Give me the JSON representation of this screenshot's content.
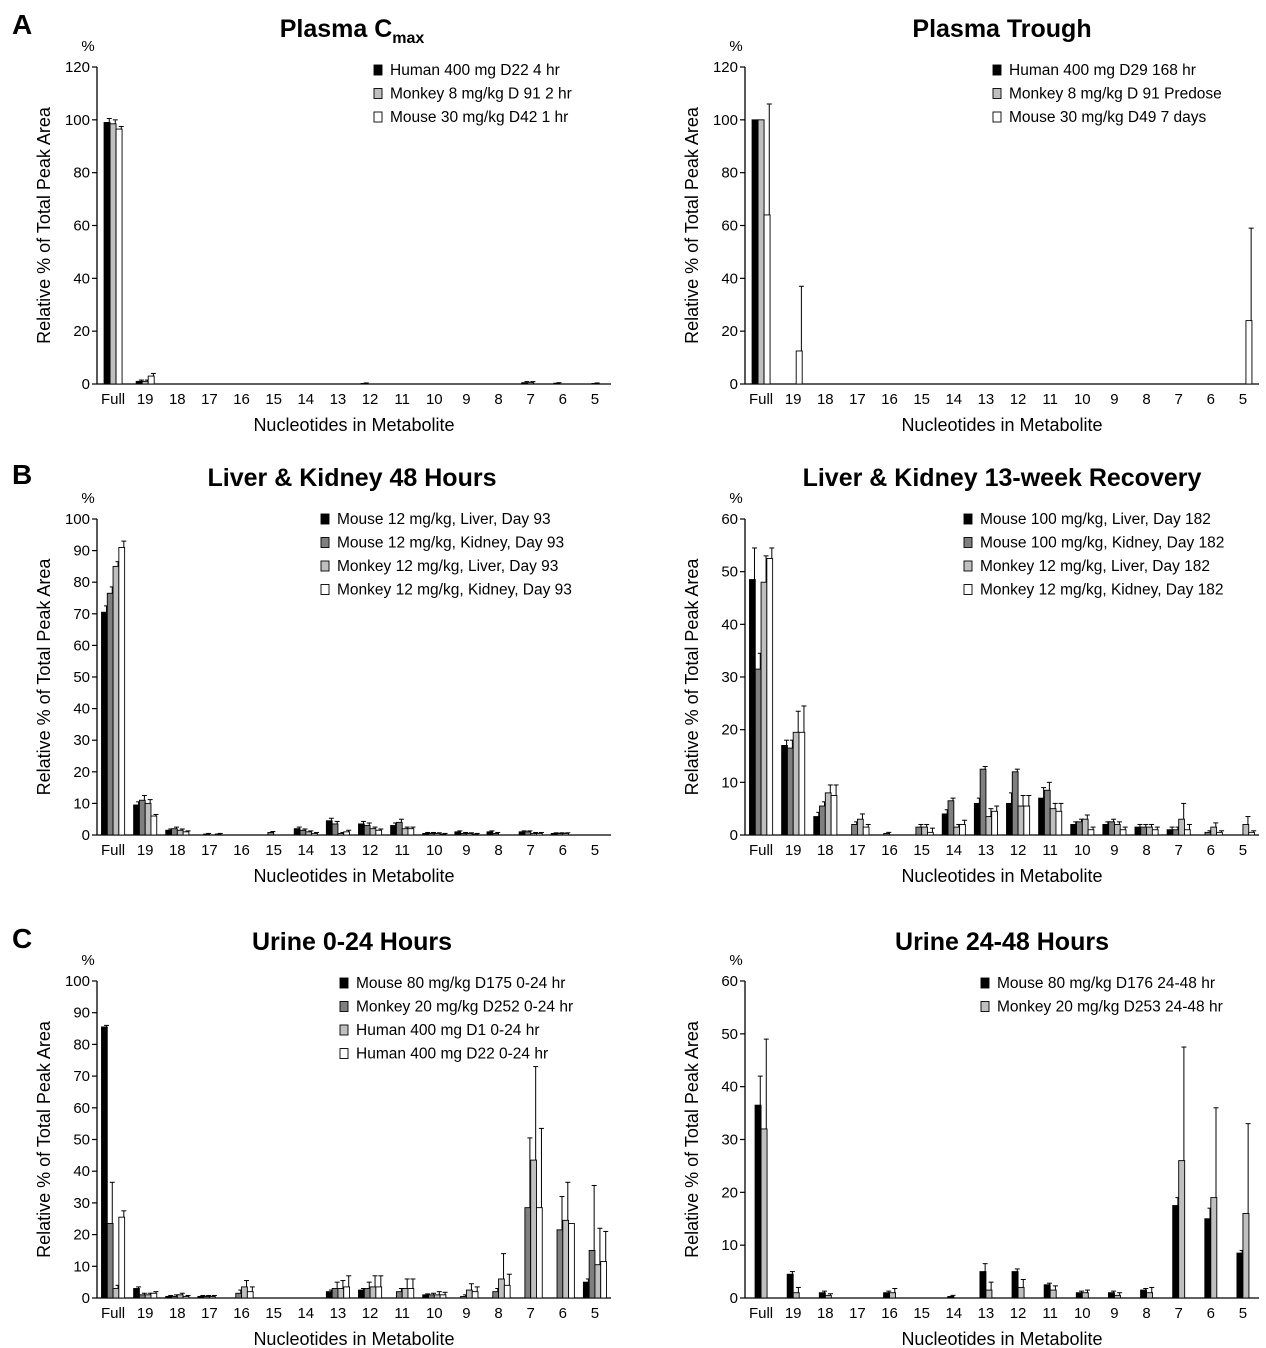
{
  "panel_letters": [
    "A",
    "B",
    "C"
  ],
  "colors": {
    "black": "#000000",
    "dark-gray": "#7f7f7f",
    "light-gray": "#bfbfbf",
    "white": "#ffffff"
  },
  "chart_data": [
    {
      "panel": "A",
      "type": "bar",
      "title": "Plasma C",
      "title_sub": "max",
      "xlabel": "Nucleotides in Metabolite",
      "ylabel": "Relative % of Total Peak Area",
      "yunit": "%",
      "ylim": [
        0,
        120
      ],
      "yticks": [
        0,
        20,
        40,
        60,
        80,
        100,
        120
      ],
      "grid": false,
      "legend": "top-right",
      "categories": [
        "Full",
        "19",
        "18",
        "17",
        "16",
        "15",
        "14",
        "13",
        "12",
        "11",
        "10",
        "9",
        "8",
        "7",
        "6",
        "5"
      ],
      "series": [
        {
          "name": "Human 400 mg D22 4 hr",
          "color": "#000000",
          "values": [
            99,
            1,
            0,
            0,
            0,
            0,
            0,
            0,
            0.2,
            0,
            0,
            0,
            0,
            0.5,
            0.3,
            0
          ],
          "errors": [
            1.5,
            0.5,
            0,
            0,
            0,
            0,
            0,
            0,
            0.2,
            0,
            0,
            0,
            0,
            0.4,
            0.2,
            0
          ]
        },
        {
          "name": "Monkey 8 mg/kg D 91 2 hr",
          "color": "#bfbfbf",
          "values": [
            98.5,
            1,
            0,
            0,
            0,
            0,
            0,
            0,
            0,
            0,
            0,
            0,
            0,
            0.5,
            0,
            0.2
          ],
          "errors": [
            1.5,
            0.5,
            0,
            0,
            0,
            0,
            0,
            0,
            0,
            0,
            0,
            0,
            0,
            0.4,
            0,
            0.2
          ]
        },
        {
          "name": "Mouse 30 mg/kg D42 1 hr",
          "color": "#ffffff",
          "values": [
            96.5,
            3,
            0,
            0,
            0,
            0,
            0,
            0,
            0,
            0,
            0,
            0,
            0,
            0,
            0,
            0
          ],
          "errors": [
            1,
            1,
            0,
            0,
            0,
            0,
            0,
            0,
            0,
            0,
            0,
            0,
            0,
            0,
            0,
            0
          ]
        }
      ]
    },
    {
      "panel": "A",
      "type": "bar",
      "title": "Plasma Trough",
      "xlabel": "Nucleotides in Metabolite",
      "ylabel": "Relative % of Total Peak Area",
      "yunit": "%",
      "ylim": [
        0,
        120
      ],
      "yticks": [
        0,
        20,
        40,
        60,
        80,
        100,
        120
      ],
      "grid": false,
      "legend": "top-right",
      "categories": [
        "Full",
        "19",
        "18",
        "17",
        "16",
        "15",
        "14",
        "13",
        "12",
        "11",
        "10",
        "9",
        "8",
        "7",
        "6",
        "5"
      ],
      "series": [
        {
          "name": "Human 400 mg D29 168 hr",
          "color": "#000000",
          "values": [
            100,
            0,
            0,
            0,
            0,
            0,
            0,
            0,
            0,
            0,
            0,
            0,
            0,
            0,
            0,
            0
          ],
          "errors": [
            0,
            0,
            0,
            0,
            0,
            0,
            0,
            0,
            0,
            0,
            0,
            0,
            0,
            0,
            0,
            0
          ]
        },
        {
          "name": "Monkey 8 mg/kg D 91 Predose",
          "color": "#bfbfbf",
          "values": [
            100,
            0,
            0,
            0,
            0,
            0,
            0,
            0,
            0,
            0,
            0,
            0,
            0,
            0,
            0,
            0
          ],
          "errors": [
            0,
            0,
            0,
            0,
            0,
            0,
            0,
            0,
            0,
            0,
            0,
            0,
            0,
            0,
            0,
            0
          ]
        },
        {
          "name": "Mouse 30 mg/kg D49 7 days",
          "color": "#ffffff",
          "values": [
            64,
            12.5,
            0,
            0,
            0,
            0,
            0,
            0,
            0,
            0,
            0,
            0,
            0,
            0,
            0,
            24
          ],
          "errors": [
            42,
            24.5,
            0,
            0,
            0,
            0,
            0,
            0,
            0,
            0,
            0,
            0,
            0,
            0,
            0,
            35
          ]
        }
      ]
    },
    {
      "panel": "B",
      "type": "bar",
      "title": "Liver & Kidney 48 Hours",
      "xlabel": "Nucleotides in Metabolite",
      "ylabel": "Relative % of Total Peak Area",
      "yunit": "%",
      "ylim": [
        0,
        100
      ],
      "yticks": [
        0,
        10,
        20,
        30,
        40,
        50,
        60,
        70,
        80,
        90,
        100
      ],
      "grid": false,
      "legend": "top-right",
      "categories": [
        "Full",
        "19",
        "18",
        "17",
        "16",
        "15",
        "14",
        "13",
        "12",
        "11",
        "10",
        "9",
        "8",
        "7",
        "6",
        "5"
      ],
      "series": [
        {
          "name": "Mouse 12 mg/kg, Liver, Day 93",
          "color": "#000000",
          "values": [
            70.5,
            9.5,
            1.5,
            0,
            0,
            0,
            2,
            4.5,
            3.5,
            3,
            0.5,
            1,
            1,
            1,
            0.5,
            0
          ],
          "errors": [
            2,
            1,
            0.4,
            0,
            0,
            0,
            0.5,
            0.8,
            0.8,
            0.8,
            0.3,
            0.3,
            0.3,
            0.3,
            0.2,
            0
          ]
        },
        {
          "name": "Mouse 12 mg/kg, Kidney, Day 93",
          "color": "#7f7f7f",
          "values": [
            76.5,
            11,
            2,
            0.3,
            0,
            0.8,
            1.5,
            3.5,
            3,
            4,
            0.5,
            0.5,
            0.5,
            1,
            0.5,
            0
          ],
          "errors": [
            2,
            1.5,
            0.5,
            0.2,
            0,
            0.3,
            0.4,
            0.8,
            0.8,
            1,
            0.3,
            0.3,
            0.3,
            0.3,
            0.2,
            0
          ]
        },
        {
          "name": "Monkey 12 mg/kg, Liver, Day 93",
          "color": "#bfbfbf",
          "values": [
            85,
            10,
            1.5,
            0,
            0,
            0,
            1,
            0.5,
            2,
            2,
            0.5,
            0.5,
            0,
            0.5,
            0.5,
            0
          ],
          "errors": [
            1.5,
            1.2,
            0.4,
            0,
            0,
            0,
            0.3,
            0.3,
            0.5,
            0.5,
            0.2,
            0.2,
            0,
            0.3,
            0.2,
            0
          ]
        },
        {
          "name": "Monkey 12 mg/kg, Kidney, Day 93",
          "color": "#ffffff",
          "values": [
            91,
            6,
            1,
            0.3,
            0,
            0,
            0.5,
            1,
            1.5,
            2,
            0.3,
            0.3,
            0,
            0.5,
            0,
            0
          ],
          "errors": [
            2,
            0.5,
            0.3,
            0.2,
            0,
            0,
            0.3,
            0.5,
            0.4,
            0.5,
            0.2,
            0.2,
            0,
            0.3,
            0,
            0
          ]
        }
      ]
    },
    {
      "panel": "B",
      "type": "bar",
      "title": "Liver & Kidney 13-week Recovery",
      "xlabel": "Nucleotides in Metabolite",
      "ylabel": "Relative % of Total Peak Area",
      "yunit": "%",
      "ylim": [
        0,
        60
      ],
      "yticks": [
        0,
        10,
        20,
        30,
        40,
        50,
        60
      ],
      "grid": false,
      "legend": "top-right",
      "categories": [
        "Full",
        "19",
        "18",
        "17",
        "16",
        "15",
        "14",
        "13",
        "12",
        "11",
        "10",
        "9",
        "8",
        "7",
        "6",
        "5"
      ],
      "series": [
        {
          "name": "Mouse 100 mg/kg, Liver, Day 182",
          "color": "#000000",
          "values": [
            48.5,
            17,
            3.5,
            0,
            0,
            0,
            4,
            6,
            6,
            7,
            2,
            2,
            1.5,
            1,
            0,
            0
          ],
          "errors": [
            6,
            1,
            0.8,
            0,
            0,
            0,
            0.8,
            1,
            2,
            2,
            0.5,
            0.5,
            0.5,
            0.5,
            0,
            0
          ]
        },
        {
          "name": "Mouse 100 mg/kg, Kidney, Day 182",
          "color": "#7f7f7f",
          "values": [
            31.5,
            16.5,
            5.5,
            2,
            0.3,
            1.5,
            6.5,
            12.5,
            12,
            8.5,
            2.5,
            2.5,
            1.5,
            1,
            0.5,
            0
          ],
          "errors": [
            3,
            1.5,
            0.8,
            0.5,
            0.2,
            0.5,
            0.5,
            0.5,
            0.5,
            1.5,
            0.5,
            0.5,
            0.5,
            0.5,
            0.3,
            0
          ]
        },
        {
          "name": "Monkey 12 mg/kg, Liver, Day 182",
          "color": "#bfbfbf",
          "values": [
            48,
            19.5,
            8,
            3,
            0,
            1.5,
            1.5,
            3.5,
            5.5,
            5,
            3,
            2,
            1.5,
            3,
            1.5,
            2
          ],
          "errors": [
            5,
            4,
            1.5,
            1,
            0,
            0.5,
            0.5,
            1.5,
            2,
            1,
            0.8,
            0.5,
            0.5,
            3,
            0.8,
            1.5
          ]
        },
        {
          "name": "Monkey 12 mg/kg, Kidney, Day 182",
          "color": "#ffffff",
          "values": [
            52.5,
            19.5,
            7.5,
            1.5,
            0,
            0.5,
            2,
            4.5,
            5.5,
            4.5,
            1,
            1,
            1,
            1,
            0.5,
            0.5
          ],
          "errors": [
            2,
            5,
            2,
            0.5,
            0,
            0.8,
            0.8,
            1,
            2,
            1.5,
            0.5,
            0.5,
            0.5,
            1,
            0.3,
            0.3
          ]
        }
      ]
    },
    {
      "panel": "C",
      "type": "bar",
      "title": "Urine 0-24 Hours",
      "xlabel": "Nucleotides in Metabolite",
      "ylabel": "Relative % of Total Peak Area",
      "yunit": "%",
      "ylim": [
        0,
        100
      ],
      "yticks": [
        0,
        10,
        20,
        30,
        40,
        50,
        60,
        70,
        80,
        90,
        100
      ],
      "grid": false,
      "legend": "top-right",
      "categories": [
        "Full",
        "19",
        "18",
        "17",
        "16",
        "15",
        "14",
        "13",
        "12",
        "11",
        "10",
        "9",
        "8",
        "7",
        "6",
        "5"
      ],
      "series": [
        {
          "name": "Mouse 80 mg/kg D175 0-24 hr",
          "color": "#000000",
          "values": [
            85.5,
            3,
            0.5,
            0.5,
            0,
            0,
            0,
            2,
            2.5,
            0,
            1,
            0,
            0,
            0,
            0,
            5
          ],
          "errors": [
            0.5,
            0.5,
            0.3,
            0.3,
            0,
            0,
            0,
            0.5,
            0.5,
            0,
            0.3,
            0,
            0,
            0,
            0,
            1
          ]
        },
        {
          "name": "Monkey 20 mg/kg D252 0-24 hr",
          "color": "#7f7f7f",
          "values": [
            23.5,
            1,
            0.5,
            0.5,
            1.5,
            0,
            0,
            3,
            3,
            2,
            1,
            0.5,
            2,
            28.5,
            21.5,
            15
          ],
          "errors": [
            13,
            0.5,
            0.5,
            0.3,
            1,
            0,
            0,
            2,
            2,
            1,
            0.5,
            0.5,
            1,
            22,
            10.5,
            20.5
          ]
        },
        {
          "name": "Human 400 mg D1 0-24 hr",
          "color": "#bfbfbf",
          "values": [
            3,
            1,
            1,
            0.5,
            3.5,
            0,
            0,
            3,
            3.5,
            3,
            1,
            2.5,
            6,
            43.5,
            24.5,
            10.5
          ],
          "errors": [
            1,
            0.5,
            0.5,
            0.3,
            2,
            0,
            0,
            2.5,
            3.5,
            3,
            1,
            2,
            8,
            29.5,
            12,
            11.5
          ]
        },
        {
          "name": "Human 400 mg D22 0-24 hr",
          "color": "#ffffff",
          "values": [
            25.5,
            1.5,
            0.5,
            0,
            2,
            0,
            0,
            3.5,
            3.5,
            3,
            1,
            2,
            4,
            28.5,
            23.5,
            11.5
          ],
          "errors": [
            2,
            0.5,
            0.3,
            0,
            1.5,
            0,
            0,
            3.5,
            3.5,
            3,
            0.8,
            1.5,
            3.5,
            25,
            0,
            9.5
          ]
        }
      ]
    },
    {
      "panel": "C",
      "type": "bar",
      "title": "Urine 24-48 Hours",
      "xlabel": "Nucleotides in Metabolite",
      "ylabel": "Relative % of Total Peak Area",
      "yunit": "%",
      "ylim": [
        0,
        60
      ],
      "yticks": [
        0,
        10,
        20,
        30,
        40,
        50,
        60
      ],
      "grid": false,
      "legend": "top-right",
      "categories": [
        "Full",
        "19",
        "18",
        "17",
        "16",
        "15",
        "14",
        "13",
        "12",
        "11",
        "10",
        "9",
        "8",
        "7",
        "6",
        "5"
      ],
      "series": [
        {
          "name": "Mouse 80 mg/kg D176 24-48 hr",
          "color": "#000000",
          "values": [
            36.5,
            4.5,
            1,
            0,
            1,
            0,
            0.3,
            5,
            5,
            2.5,
            1,
            1,
            1.5,
            17.5,
            15,
            8.5
          ],
          "errors": [
            5.5,
            0.5,
            0.3,
            0,
            0.3,
            0,
            0.2,
            1.5,
            0.5,
            0.3,
            0.3,
            0.3,
            0.3,
            1.5,
            2,
            0.5
          ]
        },
        {
          "name": "Monkey 20 mg/kg D253 24-48 hr",
          "color": "#bfbfbf",
          "values": [
            32,
            1,
            0.5,
            0,
            1,
            0,
            0,
            1.5,
            2,
            1.5,
            1,
            0.5,
            1,
            26,
            19,
            16
          ],
          "errors": [
            17,
            1,
            0.3,
            0,
            0.8,
            0,
            0,
            1.5,
            1.5,
            0.8,
            0.5,
            0.5,
            1,
            21.5,
            17,
            17
          ]
        }
      ]
    }
  ]
}
